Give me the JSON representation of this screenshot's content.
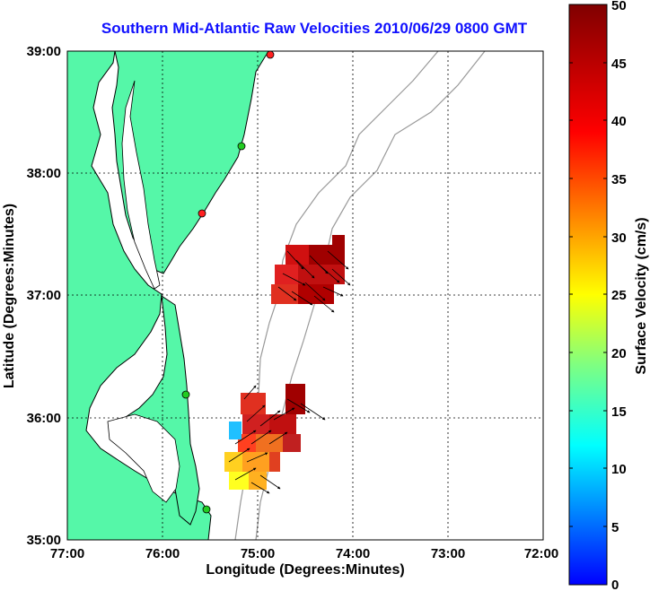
{
  "title": "Southern Mid-Atlantic Raw Velocities 2010/06/29 0800 GMT",
  "axes": {
    "xlabel": "Longitude (Degrees:Minutes)",
    "ylabel": "Latitude (Degrees:Minutes)",
    "xticks": [
      "77:00",
      "76:00",
      "75:00",
      "74:00",
      "73:00",
      "72:00"
    ],
    "yticks": [
      "39:00",
      "38:00",
      "37:00",
      "36:00",
      "35:00"
    ]
  },
  "colorbar": {
    "label": "Surface Velocity (cm/s)",
    "ticks": [
      "50",
      "45",
      "40",
      "35",
      "30",
      "25",
      "20",
      "15",
      "10",
      "5",
      "0"
    ],
    "min": 0,
    "max": 50
  },
  "colors": {
    "land": "#55f7a8",
    "water": "#ffffff",
    "title": "#1010ff",
    "coast": "#000000",
    "bathymetry": "#999999"
  },
  "map_extent": {
    "lon_min": -77,
    "lon_max": -72,
    "lat_min": 35,
    "lat_max": 39
  },
  "stations": [
    {
      "name": "station-north-red",
      "lon": -74.91,
      "lat": 38.98,
      "color": "#ff2020"
    },
    {
      "name": "station-green-1",
      "lon": -75.15,
      "lat": 38.23,
      "color": "#22cc22"
    },
    {
      "name": "station-red-2",
      "lon": -75.49,
      "lat": 37.7,
      "color": "#ff2020"
    },
    {
      "name": "station-green-3",
      "lon": -75.72,
      "lat": 36.18,
      "color": "#22cc22"
    },
    {
      "name": "station-green-4",
      "lon": -75.45,
      "lat": 35.26,
      "color": "#22cc22"
    }
  ]
}
